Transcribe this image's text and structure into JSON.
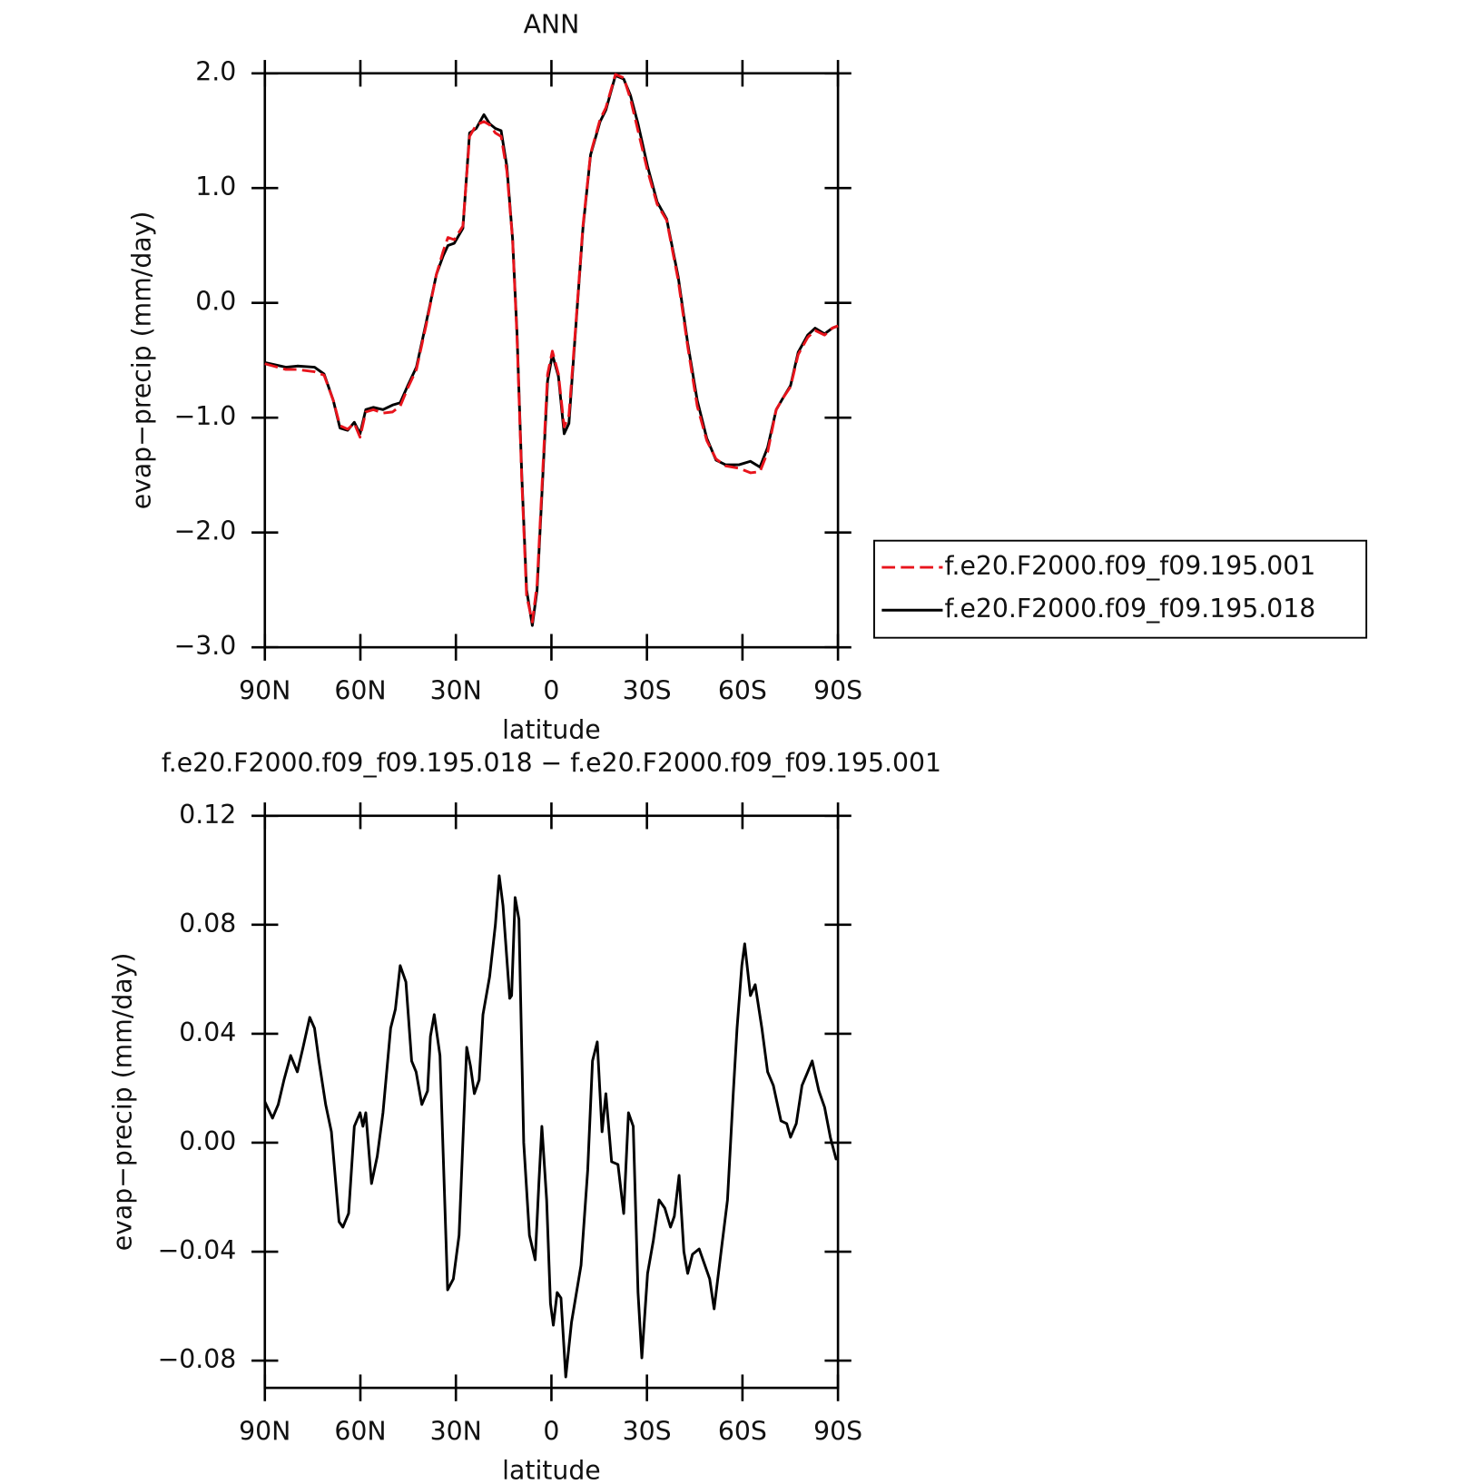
{
  "chart_data": [
    {
      "type": "line",
      "title": "ANN",
      "xlabel": "latitude",
      "ylabel": "evap−precip (mm/day)",
      "x": [
        90.0,
        83.4,
        79.8,
        74.4,
        71.4,
        68.5,
        66.4,
        64.0,
        61.9,
        60.1,
        58.3,
        55.9,
        52.9,
        49.9,
        47.5,
        45.1,
        42.4,
        39.4,
        36.1,
        34.0,
        32.5,
        30.5,
        27.8,
        25.7,
        23.6,
        21.2,
        19.4,
        17.6,
        15.8,
        14.0,
        12.2,
        10.8,
        9.3,
        7.8,
        6.0,
        4.5,
        2.7,
        1.2,
        -0.3,
        -2.2,
        -4.0,
        -5.5,
        -7.5,
        -9.9,
        -12.3,
        -15.3,
        -17.1,
        -20.1,
        -22.7,
        -24.8,
        -27.2,
        -30.2,
        -33.2,
        -36.2,
        -39.8,
        -42.8,
        -45.8,
        -48.8,
        -51.7,
        -54.7,
        -58.9,
        -62.5,
        -65.5,
        -67.9,
        -70.6,
        -72.7,
        -75.1,
        -77.5,
        -80.5,
        -82.8,
        -85.8,
        -88.2,
        -90.0
      ],
      "series": [
        {
          "name": "f.e20.F2000.f09_f09.195.001",
          "color": "#e8141c",
          "line_style": "dashed",
          "values": [
            -0.53,
            -0.58,
            -0.58,
            -0.6,
            -0.63,
            -0.85,
            -1.07,
            -1.1,
            -1.05,
            -1.17,
            -0.95,
            -0.93,
            -0.96,
            -0.95,
            -0.9,
            -0.74,
            -0.58,
            -0.2,
            0.25,
            0.45,
            0.57,
            0.55,
            0.67,
            1.45,
            1.55,
            1.58,
            1.55,
            1.48,
            1.45,
            1.15,
            0.55,
            -0.3,
            -1.55,
            -2.55,
            -2.78,
            -2.45,
            -1.45,
            -0.62,
            -0.42,
            -0.62,
            -1.08,
            -0.98,
            -0.25,
            0.67,
            1.3,
            1.6,
            1.7,
            1.99,
            1.96,
            1.78,
            1.5,
            1.15,
            0.86,
            0.72,
            0.2,
            -0.38,
            -0.9,
            -1.2,
            -1.36,
            -1.42,
            -1.44,
            -1.48,
            -1.47,
            -1.3,
            -0.93,
            -0.83,
            -0.73,
            -0.45,
            -0.3,
            -0.24,
            -0.28,
            -0.22,
            -0.2
          ]
        },
        {
          "name": "f.e20.F2000.f09_f09.195.018",
          "color": "#000000",
          "line_style": "solid",
          "values": [
            -0.52,
            -0.56,
            -0.55,
            -0.56,
            -0.62,
            -0.85,
            -1.09,
            -1.11,
            -1.04,
            -1.14,
            -0.93,
            -0.91,
            -0.93,
            -0.89,
            -0.87,
            -0.72,
            -0.56,
            -0.18,
            0.25,
            0.41,
            0.5,
            0.52,
            0.65,
            1.48,
            1.52,
            1.64,
            1.56,
            1.52,
            1.5,
            1.19,
            0.56,
            -0.27,
            -1.51,
            -2.5,
            -2.81,
            -2.5,
            -1.51,
            -0.68,
            -0.45,
            -0.64,
            -1.14,
            -1.05,
            -0.27,
            0.65,
            1.29,
            1.58,
            1.68,
            1.98,
            1.95,
            1.81,
            1.56,
            1.19,
            0.88,
            0.73,
            0.23,
            -0.35,
            -0.85,
            -1.18,
            -1.37,
            -1.41,
            -1.41,
            -1.38,
            -1.43,
            -1.26,
            -0.93,
            -0.83,
            -0.72,
            -0.43,
            -0.28,
            -0.22,
            -0.27,
            -0.22,
            -0.2
          ]
        }
      ],
      "xlim": [
        90,
        -90
      ],
      "xticks": [
        {
          "value": 90,
          "label": "90N"
        },
        {
          "value": 60,
          "label": "60N"
        },
        {
          "value": 30,
          "label": "30N"
        },
        {
          "value": 0,
          "label": "0"
        },
        {
          "value": -30,
          "label": "30S"
        },
        {
          "value": -60,
          "label": "60S"
        },
        {
          "value": -90,
          "label": "90S"
        }
      ],
      "ylim": [
        -3.0,
        2.0
      ],
      "yticks": [
        {
          "value": 2.0,
          "label": "2.0"
        },
        {
          "value": 1.0,
          "label": "1.0"
        },
        {
          "value": 0.0,
          "label": "0.0"
        },
        {
          "value": -1.0,
          "label": "−1.0"
        },
        {
          "value": -2.0,
          "label": "−2.0"
        },
        {
          "value": -3.0,
          "label": "−3.0"
        }
      ],
      "legend": "outside right"
    },
    {
      "type": "line",
      "title": "f.e20.F2000.f09_f09.195.018 − f.e20.F2000.f09_f09.195.001",
      "xlabel": "latitude",
      "ylabel": "evap−precip (mm/day)",
      "x": [
        90.0,
        87.6,
        85.8,
        84.0,
        81.9,
        79.8,
        78.0,
        75.9,
        74.4,
        73.0,
        70.9,
        69.1,
        66.7,
        65.5,
        63.7,
        61.9,
        60.1,
        59.2,
        58.3,
        56.5,
        54.7,
        52.9,
        50.5,
        49.0,
        47.5,
        45.7,
        43.9,
        42.5,
        40.7,
        38.9,
        38.0,
        36.8,
        35.0,
        32.6,
        30.8,
        29.0,
        26.6,
        25.4,
        24.2,
        22.7,
        21.5,
        19.4,
        17.6,
        16.4,
        15.2,
        13.1,
        12.5,
        11.4,
        10.2,
        8.7,
        6.9,
        5.1,
        3.9,
        3.0,
        1.5,
        0.3,
        -0.6,
        -1.8,
        -3.0,
        -4.5,
        -6.3,
        -9.3,
        -11.4,
        -12.9,
        -14.4,
        -15.9,
        -17.1,
        -18.9,
        -20.9,
        -22.7,
        -24.2,
        -25.7,
        -27.2,
        -28.4,
        -30.2,
        -32.0,
        -33.8,
        -35.6,
        -37.4,
        -38.6,
        -40.1,
        -41.6,
        -42.8,
        -44.3,
        -46.4,
        -48.2,
        -49.7,
        -51.1,
        -53.5,
        -55.3,
        -57.1,
        -58.3,
        -59.8,
        -60.7,
        -62.5,
        -64.0,
        -66.1,
        -67.9,
        -69.7,
        -72.1,
        -73.9,
        -75.1,
        -76.9,
        -78.7,
        -80.5,
        -81.9,
        -84.0,
        -85.8,
        -87.6,
        -89.4,
        -90.0
      ],
      "series": [
        {
          "color": "#000000",
          "line_style": "solid",
          "values": [
            0.015,
            0.009,
            0.014,
            0.023,
            0.032,
            0.026,
            0.035,
            0.046,
            0.042,
            0.03,
            0.014,
            0.004,
            -0.029,
            -0.031,
            -0.026,
            0.006,
            0.011,
            0.006,
            0.011,
            -0.015,
            -0.005,
            0.011,
            0.042,
            0.049,
            0.065,
            0.059,
            0.03,
            0.026,
            0.014,
            0.019,
            0.039,
            0.047,
            0.032,
            -0.054,
            -0.05,
            -0.034,
            0.035,
            0.028,
            0.018,
            0.023,
            0.047,
            0.061,
            0.08,
            0.098,
            0.087,
            0.053,
            0.054,
            0.09,
            0.082,
            0.0,
            -0.034,
            -0.043,
            -0.014,
            0.006,
            -0.021,
            -0.059,
            -0.067,
            -0.055,
            -0.057,
            -0.086,
            -0.066,
            -0.045,
            -0.01,
            0.03,
            0.037,
            0.004,
            0.018,
            -0.007,
            -0.008,
            -0.026,
            0.011,
            0.006,
            -0.055,
            -0.079,
            -0.048,
            -0.036,
            -0.021,
            -0.024,
            -0.031,
            -0.027,
            -0.012,
            -0.04,
            -0.048,
            -0.041,
            -0.039,
            -0.045,
            -0.05,
            -0.061,
            -0.038,
            -0.021,
            0.018,
            0.042,
            0.065,
            0.073,
            0.054,
            0.058,
            0.042,
            0.026,
            0.021,
            0.008,
            0.007,
            0.002,
            0.007,
            0.021,
            0.026,
            0.03,
            0.019,
            0.013,
            0.002,
            -0.006,
            -0.006
          ]
        }
      ],
      "xlim": [
        90,
        -90
      ],
      "xticks": [
        {
          "value": 90,
          "label": "90N"
        },
        {
          "value": 60,
          "label": "60N"
        },
        {
          "value": 30,
          "label": "30N"
        },
        {
          "value": 0,
          "label": "0"
        },
        {
          "value": -30,
          "label": "30S"
        },
        {
          "value": -60,
          "label": "60S"
        },
        {
          "value": -90,
          "label": "90S"
        }
      ],
      "ylim": [
        -0.09,
        0.12
      ],
      "yticks": [
        0.12,
        0.08,
        0.04,
        {
          "value": 0.0,
          "label": "0.00"
        },
        {
          "value": -0.04,
          "label": "−0.04"
        },
        {
          "value": -0.08,
          "label": "−0.08"
        }
      ]
    }
  ]
}
